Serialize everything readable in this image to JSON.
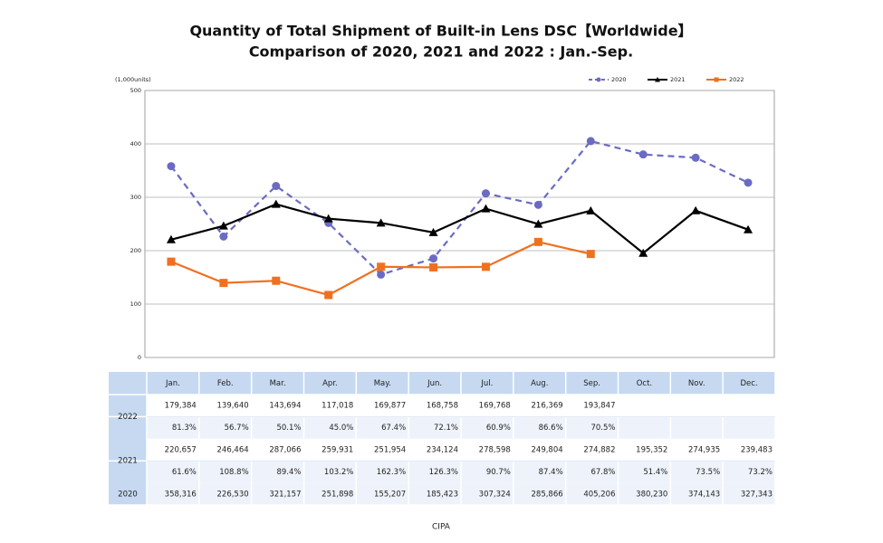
{
  "chart_data": {
    "type": "line",
    "title": [
      "Quantity of Total Shipment of Built-in Lens DSC【Worldwide】",
      "Comparison of 2020, 2021 and 2022 : Jan.-Sep."
    ],
    "y_label": "(1,000units)",
    "categories": [
      "Jan.",
      "Feb.",
      "Mar.",
      "Apr.",
      "May.",
      "Jun.",
      "Jul.",
      "Aug.",
      "Sep.",
      "Oct.",
      "Nov.",
      "Dec."
    ],
    "series": [
      {
        "name": "2020",
        "color": "#6b6bc4",
        "dash": true,
        "marker": "circle",
        "values": [
          358.316,
          226.53,
          321.157,
          251.898,
          155.207,
          185.423,
          307.324,
          285.866,
          405.206,
          380.23,
          374.143,
          327.343
        ]
      },
      {
        "name": "2021",
        "color": "#000000",
        "dash": false,
        "marker": "triangle",
        "values": [
          220.657,
          246.464,
          287.066,
          259.931,
          251.954,
          234.124,
          278.598,
          249.804,
          274.882,
          195.352,
          274.935,
          239.483
        ]
      },
      {
        "name": "2022",
        "color": "#f07020",
        "dash": false,
        "marker": "square",
        "values": [
          179.384,
          139.64,
          143.694,
          117.018,
          169.877,
          168.758,
          169.768,
          216.369,
          193.847,
          null,
          null,
          null
        ]
      }
    ],
    "ylim": [
      0,
      500
    ],
    "yticks": [
      0,
      100,
      200,
      300,
      400,
      500
    ],
    "grid": true,
    "legend": "top-right"
  },
  "table": {
    "rows": [
      [
        "179,384",
        "139,640",
        "143,694",
        "117,018",
        "169,877",
        "168,758",
        "169,768",
        "216,369",
        "193,847"
      ],
      [
        "81.3%",
        "56.7%",
        "50.1%",
        "45.0%",
        "67.4%",
        "72.1%",
        "60.9%",
        "86.6%",
        "70.5%"
      ],
      [
        "220,657",
        "246,464",
        "287,066",
        "259,931",
        "251,954",
        "234,124",
        "278,598",
        "249,804",
        "274,882",
        "195,352",
        "274,935",
        "239,483"
      ],
      [
        "61.6%",
        "108.8%",
        "89.4%",
        "103.2%",
        "162.3%",
        "126.3%",
        "90.7%",
        "87.4%",
        "67.8%",
        "51.4%",
        "73.5%",
        "73.2%"
      ],
      [
        "358,316",
        "226,530",
        "321,157",
        "251,898",
        "155,207",
        "185,423",
        "307,324",
        "285,866",
        "405,206",
        "380,230",
        "374,143",
        "327,343"
      ]
    ]
  },
  "source": "CIPA"
}
